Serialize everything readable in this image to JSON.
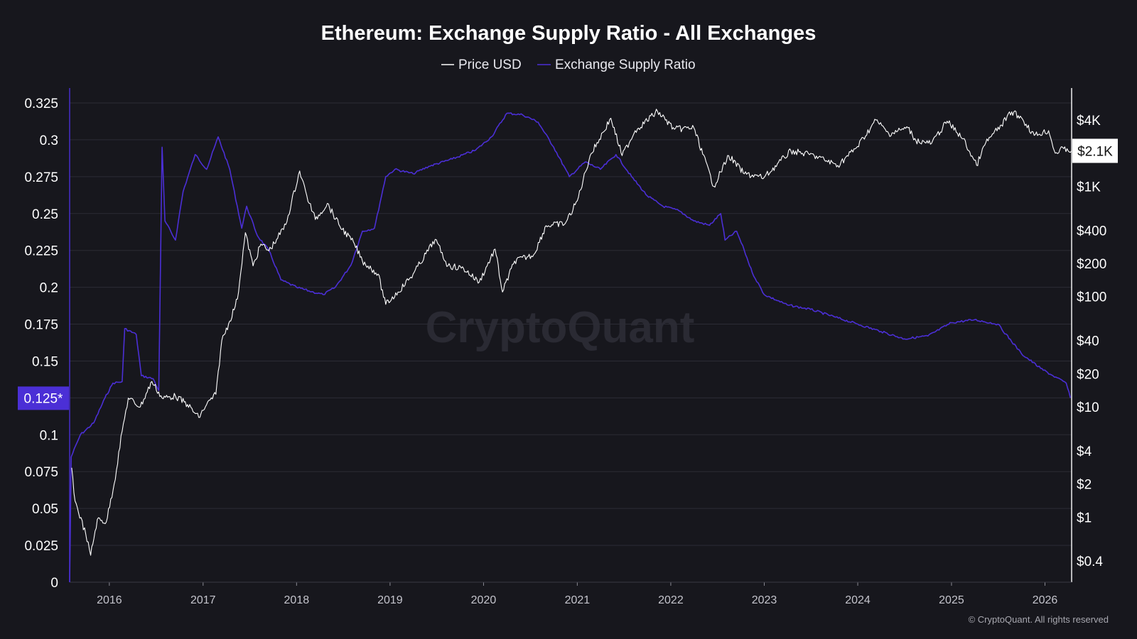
{
  "page": {
    "copyright": "© CryptoQuant. All rights reserved",
    "watermark": "CryptoQuant"
  },
  "colors": {
    "background": "#17171d",
    "grid": "#2c2c35",
    "price": "#ffffff",
    "ratio": "#4b2fd6",
    "left_badge": "#4b2fd6",
    "right_badge": "#ffffff"
  },
  "chart_data": {
    "type": "line",
    "title": "Ethereum: Exchange Supply Ratio - All Exchanges",
    "legend": {
      "placement": "top-center",
      "items": [
        {
          "name": "Price USD",
          "color": "#ffffff"
        },
        {
          "name": "Exchange Supply Ratio",
          "color": "#4b2fd6"
        }
      ]
    },
    "grid": true,
    "x_axis": {
      "type": "date",
      "range": [
        "2015-07-30",
        "2026-04-15"
      ],
      "ticks": [
        "2016",
        "2017",
        "2018",
        "2019",
        "2020",
        "2021",
        "2022",
        "2023",
        "2024",
        "2025",
        "2026"
      ]
    },
    "y_left": {
      "ylim": [
        0,
        0.325
      ],
      "ticks": [
        "0",
        "0.025",
        "0.05",
        "0.075",
        "0.1",
        "0.125",
        "0.15",
        "0.175",
        "0.2",
        "0.225",
        "0.25",
        "0.275",
        "0.3",
        "0.325"
      ],
      "current_value_label": "0.125*",
      "current_value": 0.125
    },
    "y_right": {
      "scale": "log",
      "ticks": [
        {
          "label": "$4K",
          "value": 4000
        },
        {
          "label": "$1K",
          "value": 1000
        },
        {
          "label": "$400",
          "value": 400
        },
        {
          "label": "$200",
          "value": 200
        },
        {
          "label": "$100",
          "value": 100
        },
        {
          "label": "$40",
          "value": 40
        },
        {
          "label": "$20",
          "value": 20
        },
        {
          "label": "$10",
          "value": 10
        },
        {
          "label": "$4",
          "value": 4
        },
        {
          "label": "$2",
          "value": 2
        },
        {
          "label": "$1",
          "value": 1
        },
        {
          "label": "$0.4",
          "value": 0.4
        }
      ],
      "current_value_label": "$2.1K",
      "current_value": 2100
    },
    "series": [
      {
        "name": "Exchange Supply Ratio",
        "axis": "left",
        "points": [
          [
            "2015-07-30",
            0.0
          ],
          [
            "2015-08-05",
            0.085
          ],
          [
            "2015-09-10",
            0.1
          ],
          [
            "2015-11-01",
            0.108
          ],
          [
            "2015-12-15",
            0.125
          ],
          [
            "2016-01-15",
            0.135
          ],
          [
            "2016-02-20",
            0.136
          ],
          [
            "2016-03-01",
            0.172
          ],
          [
            "2016-04-15",
            0.168
          ],
          [
            "2016-05-05",
            0.14
          ],
          [
            "2016-06-20",
            0.138
          ],
          [
            "2016-07-12",
            0.13
          ],
          [
            "2016-07-25",
            0.295
          ],
          [
            "2016-08-05",
            0.245
          ],
          [
            "2016-09-15",
            0.232
          ],
          [
            "2016-10-15",
            0.265
          ],
          [
            "2016-12-01",
            0.29
          ],
          [
            "2017-01-15",
            0.28
          ],
          [
            "2017-03-01",
            0.302
          ],
          [
            "2017-04-15",
            0.28
          ],
          [
            "2017-06-01",
            0.24
          ],
          [
            "2017-06-20",
            0.255
          ],
          [
            "2017-08-01",
            0.235
          ],
          [
            "2017-09-15",
            0.225
          ],
          [
            "2017-11-01",
            0.205
          ],
          [
            "2018-01-01",
            0.2
          ],
          [
            "2018-03-01",
            0.197
          ],
          [
            "2018-04-15",
            0.195
          ],
          [
            "2018-06-01",
            0.2
          ],
          [
            "2018-08-01",
            0.215
          ],
          [
            "2018-09-15",
            0.238
          ],
          [
            "2018-11-01",
            0.24
          ],
          [
            "2018-12-15",
            0.275
          ],
          [
            "2019-01-20",
            0.28
          ],
          [
            "2019-04-01",
            0.277
          ],
          [
            "2019-06-01",
            0.282
          ],
          [
            "2019-09-01",
            0.287
          ],
          [
            "2019-12-01",
            0.293
          ],
          [
            "2020-02-01",
            0.302
          ],
          [
            "2020-04-01",
            0.318
          ],
          [
            "2020-06-01",
            0.317
          ],
          [
            "2020-08-01",
            0.312
          ],
          [
            "2020-10-01",
            0.295
          ],
          [
            "2020-12-01",
            0.275
          ],
          [
            "2021-02-01",
            0.285
          ],
          [
            "2021-04-01",
            0.28
          ],
          [
            "2021-06-01",
            0.29
          ],
          [
            "2021-08-01",
            0.275
          ],
          [
            "2021-10-01",
            0.262
          ],
          [
            "2021-12-01",
            0.255
          ],
          [
            "2022-02-01",
            0.252
          ],
          [
            "2022-04-01",
            0.245
          ],
          [
            "2022-06-01",
            0.242
          ],
          [
            "2022-07-15",
            0.25
          ],
          [
            "2022-08-01",
            0.232
          ],
          [
            "2022-09-15",
            0.238
          ],
          [
            "2022-10-15",
            0.225
          ],
          [
            "2022-11-15",
            0.21
          ],
          [
            "2023-01-01",
            0.195
          ],
          [
            "2023-04-01",
            0.188
          ],
          [
            "2023-07-01",
            0.185
          ],
          [
            "2023-10-01",
            0.18
          ],
          [
            "2024-01-01",
            0.175
          ],
          [
            "2024-04-01",
            0.17
          ],
          [
            "2024-07-01",
            0.165
          ],
          [
            "2024-10-01",
            0.167
          ],
          [
            "2025-01-01",
            0.176
          ],
          [
            "2025-04-01",
            0.178
          ],
          [
            "2025-07-01",
            0.175
          ],
          [
            "2025-10-01",
            0.155
          ],
          [
            "2025-12-15",
            0.145
          ],
          [
            "2026-02-01",
            0.14
          ],
          [
            "2026-03-25",
            0.135
          ],
          [
            "2026-04-10",
            0.125
          ]
        ]
      },
      {
        "name": "Price USD",
        "axis": "right",
        "points": [
          [
            "2015-08-07",
            2.8
          ],
          [
            "2015-08-20",
            1.4
          ],
          [
            "2015-10-01",
            0.7
          ],
          [
            "2015-10-20",
            0.45
          ],
          [
            "2015-11-15",
            0.95
          ],
          [
            "2015-12-20",
            0.9
          ],
          [
            "2016-01-20",
            2.0
          ],
          [
            "2016-02-20",
            6.0
          ],
          [
            "2016-03-15",
            12.0
          ],
          [
            "2016-05-01",
            10.0
          ],
          [
            "2016-06-15",
            17.0
          ],
          [
            "2016-07-25",
            12.0
          ],
          [
            "2016-09-15",
            12.5
          ],
          [
            "2016-11-01",
            10.5
          ],
          [
            "2016-12-15",
            8.0
          ],
          [
            "2017-01-15",
            10.5
          ],
          [
            "2017-02-20",
            13.0
          ],
          [
            "2017-03-15",
            40.0
          ],
          [
            "2017-04-15",
            60.0
          ],
          [
            "2017-05-15",
            95.0
          ],
          [
            "2017-06-15",
            380.0
          ],
          [
            "2017-07-15",
            190.0
          ],
          [
            "2017-08-15",
            300.0
          ],
          [
            "2017-09-15",
            260.0
          ],
          [
            "2017-10-15",
            330.0
          ],
          [
            "2017-11-20",
            450.0
          ],
          [
            "2018-01-13",
            1380.0
          ],
          [
            "2018-02-10",
            820.0
          ],
          [
            "2018-03-15",
            500.0
          ],
          [
            "2018-05-01",
            700.0
          ],
          [
            "2018-06-15",
            450.0
          ],
          [
            "2018-08-15",
            300.0
          ],
          [
            "2018-09-15",
            210.0
          ],
          [
            "2018-11-15",
            160.0
          ],
          [
            "2018-12-15",
            85.0
          ],
          [
            "2019-02-01",
            110.0
          ],
          [
            "2019-04-01",
            160.0
          ],
          [
            "2019-06-26",
            330.0
          ],
          [
            "2019-08-15",
            190.0
          ],
          [
            "2019-10-15",
            180.0
          ],
          [
            "2019-12-15",
            135.0
          ],
          [
            "2020-02-15",
            270.0
          ],
          [
            "2020-03-15",
            110.0
          ],
          [
            "2020-05-01",
            210.0
          ],
          [
            "2020-07-15",
            240.0
          ],
          [
            "2020-09-01",
            440.0
          ],
          [
            "2020-11-15",
            460.0
          ],
          [
            "2021-01-01",
            740.0
          ],
          [
            "2021-02-20",
            1900.0
          ],
          [
            "2021-05-12",
            4150.0
          ],
          [
            "2021-06-25",
            1900.0
          ],
          [
            "2021-08-15",
            3200.0
          ],
          [
            "2021-11-10",
            4800.0
          ],
          [
            "2022-01-15",
            3300.0
          ],
          [
            "2022-04-01",
            3400.0
          ],
          [
            "2022-06-18",
            1000.0
          ],
          [
            "2022-08-15",
            1900.0
          ],
          [
            "2022-10-15",
            1300.0
          ],
          [
            "2022-12-31",
            1200.0
          ],
          [
            "2023-04-15",
            2100.0
          ],
          [
            "2023-07-15",
            1900.0
          ],
          [
            "2023-10-15",
            1550.0
          ],
          [
            "2023-12-31",
            2300.0
          ],
          [
            "2024-03-12",
            4000.0
          ],
          [
            "2024-05-01",
            3000.0
          ],
          [
            "2024-07-15",
            3400.0
          ],
          [
            "2024-08-15",
            2600.0
          ],
          [
            "2024-10-15",
            2450.0
          ],
          [
            "2024-12-15",
            3900.0
          ],
          [
            "2025-02-15",
            2700.0
          ],
          [
            "2025-04-09",
            1550.0
          ],
          [
            "2025-05-15",
            2500.0
          ],
          [
            "2025-07-15",
            3600.0
          ],
          [
            "2025-08-24",
            4750.0
          ],
          [
            "2025-10-01",
            4200.0
          ],
          [
            "2025-11-20",
            2900.0
          ],
          [
            "2026-01-15",
            3200.0
          ],
          [
            "2026-02-10",
            2000.0
          ],
          [
            "2026-03-15",
            2200.0
          ],
          [
            "2026-04-15",
            2100.0
          ]
        ]
      }
    ]
  }
}
